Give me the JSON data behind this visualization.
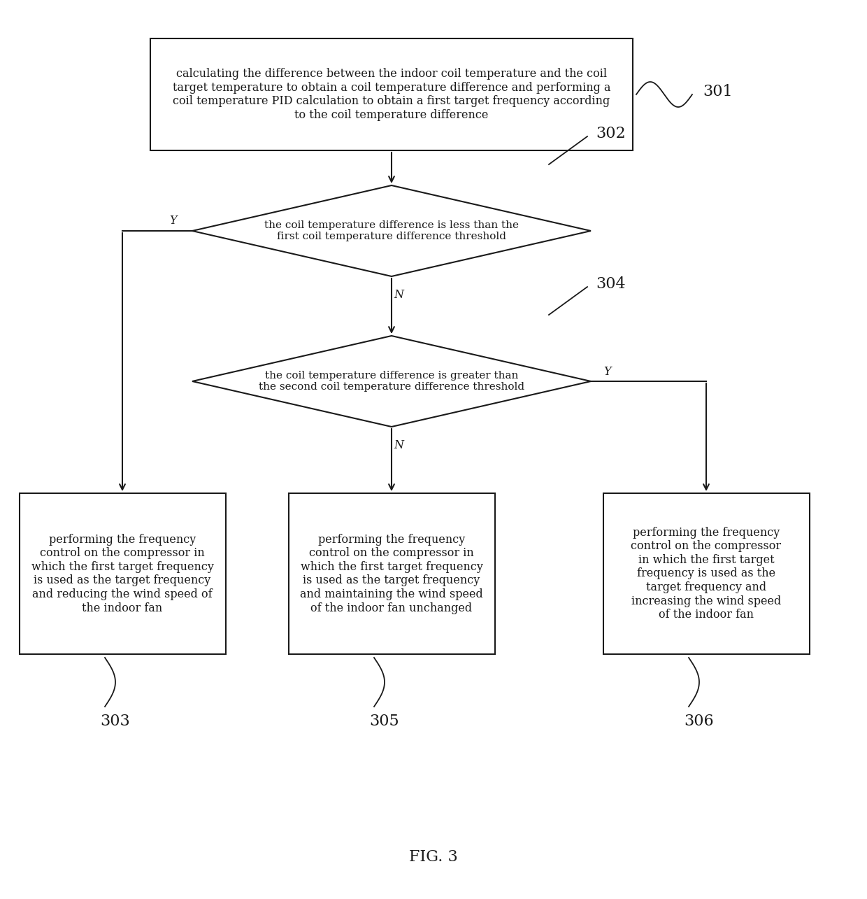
{
  "bg_color": "#ffffff",
  "line_color": "#1a1a1a",
  "text_color": "#1a1a1a",
  "font_size": 11.5,
  "fig_caption": "FIG. 3",
  "box301_text": "calculating the difference between the indoor coil temperature and the coil\ntarget temperature to obtain a coil temperature difference and performing a\ncoil temperature PID calculation to obtain a first target frequency according\nto the coil temperature difference",
  "box302_text": "the coil temperature difference is less than the\nfirst coil temperature difference threshold",
  "box304_text": "the coil temperature difference is greater than\nthe second coil temperature difference threshold",
  "box303_text": "performing the frequency\ncontrol on the compressor in\nwhich the first target frequency\nis used as the target frequency\nand reducing the wind speed of\nthe indoor fan",
  "box305_text": "performing the frequency\ncontrol on the compressor in\nwhich the first target frequency\nis used as the target frequency\nand maintaining the wind speed\nof the indoor fan unchanged",
  "box306_text": "performing the frequency\ncontrol on the compressor\nin which the first target\nfrequency is used as the\ntarget frequency and\nincreasing the wind speed\nof the indoor fan",
  "label301": "301",
  "label302": "302",
  "label303": "303",
  "label304": "304",
  "label305": "305",
  "label306": "306",
  "label_Y": "Y",
  "label_N": "N"
}
